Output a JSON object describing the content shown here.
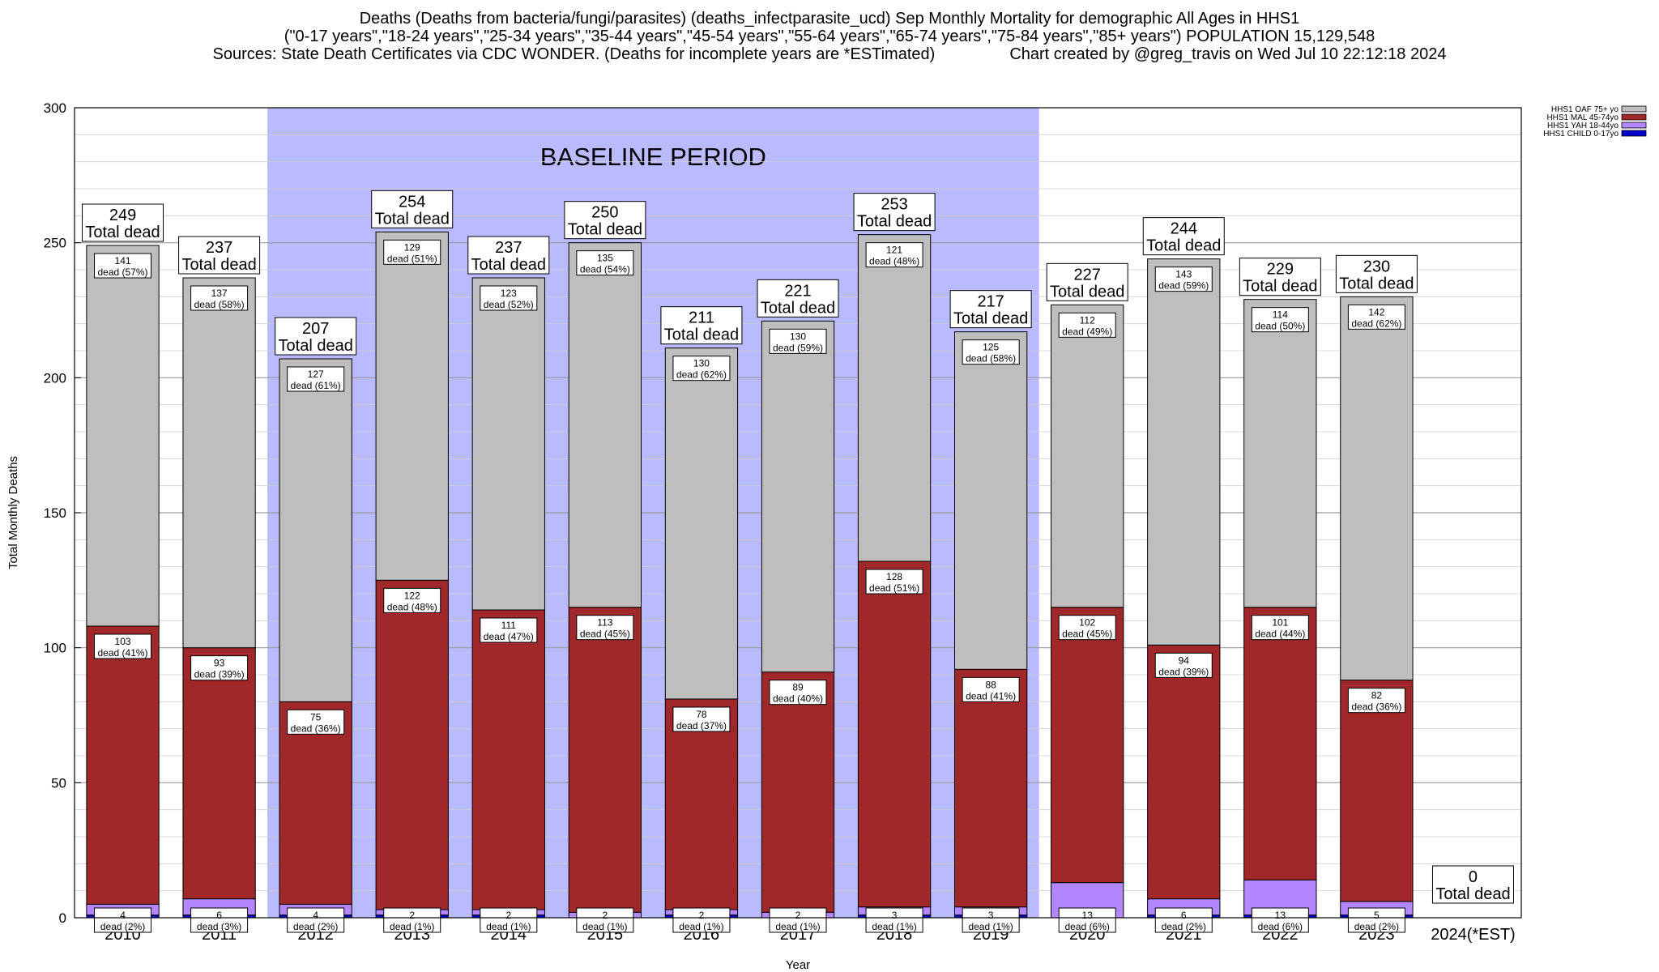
{
  "chart_data": {
    "type": "bar",
    "stacked": true,
    "title_lines": [
      "Deaths (Deaths from bacteria/fungi/parasites) (deaths_infectparasite_ucd) Sep Monthly Mortality for demographic All Ages in HHS1",
      "(\"0-17 years\",\"18-24 years\",\"25-34 years\",\"35-44 years\",\"45-54 years\",\"55-64 years\",\"65-74 years\",\"75-84 years\",\"85+ years\") POPULATION 15,129,548",
      "Sources: State Death Certificates via CDC WONDER. (Deaths for incomplete years are *ESTimated)",
      "Chart created by @greg_travis on Wed Jul 10 22:12:18 2024"
    ],
    "xlabel": "Year",
    "ylabel": "Total Monthly Deaths",
    "ylim": [
      0,
      300
    ],
    "yticks": [
      0,
      50,
      100,
      150,
      200,
      250,
      300
    ],
    "categories": [
      "2010",
      "2011",
      "2012",
      "2013",
      "2014",
      "2015",
      "2016",
      "2017",
      "2018",
      "2019",
      "2020",
      "2021",
      "2022",
      "2023",
      "2024(*EST)"
    ],
    "totals": [
      249,
      237,
      207,
      254,
      237,
      250,
      211,
      221,
      253,
      217,
      227,
      244,
      229,
      230,
      0
    ],
    "total_suffix": "Total dead",
    "dead_word": "dead",
    "series": [
      {
        "name": "HHS1 CHILD 0-17yo",
        "color": "#0000cc",
        "values": [
          1,
          1,
          1,
          1,
          1,
          0,
          1,
          0,
          1,
          1,
          0,
          1,
          1,
          1,
          0
        ]
      },
      {
        "name": "HHS1 YAH 18-44yo",
        "color": "#b388ff",
        "values": [
          4,
          6,
          4,
          2,
          2,
          2,
          2,
          2,
          3,
          3,
          13,
          6,
          13,
          5,
          0
        ],
        "labels": [
          "4",
          "6",
          "4",
          "2",
          "2",
          "2",
          "2",
          "2",
          "3",
          "3",
          "13",
          "6",
          "13",
          "5",
          ""
        ],
        "pcts": [
          "(2%)",
          "(3%)",
          "(2%)",
          "(1%)",
          "(1%)",
          "(1%)",
          "(1%)",
          "(1%)",
          "(1%)",
          "(1%)",
          "(6%)",
          "(2%)",
          "(6%)",
          "(2%)",
          ""
        ]
      },
      {
        "name": "HHS1 MAL 45-74yo",
        "color": "#a0282a",
        "values": [
          103,
          93,
          75,
          122,
          111,
          113,
          78,
          89,
          128,
          88,
          102,
          94,
          101,
          82,
          0
        ],
        "labels": [
          "103",
          "93",
          "75",
          "122",
          "111",
          "113",
          "78",
          "89",
          "128",
          "88",
          "102",
          "94",
          "101",
          "82",
          ""
        ],
        "pcts": [
          "(41%)",
          "(39%)",
          "(36%)",
          "(48%)",
          "(47%)",
          "(45%)",
          "(37%)",
          "(40%)",
          "(51%)",
          "(41%)",
          "(45%)",
          "(39%)",
          "(44%)",
          "(36%)",
          ""
        ]
      },
      {
        "name": "HHS1 OAF 75+ yo",
        "color": "#bebebe",
        "values": [
          141,
          137,
          127,
          129,
          123,
          135,
          130,
          130,
          121,
          125,
          112,
          143,
          114,
          142,
          0
        ],
        "labels": [
          "141",
          "137",
          "127",
          "129",
          "123",
          "135",
          "130",
          "130",
          "121",
          "125",
          "112",
          "143",
          "114",
          "142",
          ""
        ],
        "pcts": [
          "(57%)",
          "(58%)",
          "(61%)",
          "(51%)",
          "(52%)",
          "(54%)",
          "(62%)",
          "(59%)",
          "(48%)",
          "(58%)",
          "(49%)",
          "(59%)",
          "(50%)",
          "(62%)",
          ""
        ]
      }
    ],
    "baseline": {
      "label": "BASELINE PERIOD",
      "from": "2012",
      "to": "2019",
      "color": "#babaff"
    },
    "legend_position": "top-right",
    "grid": true
  }
}
